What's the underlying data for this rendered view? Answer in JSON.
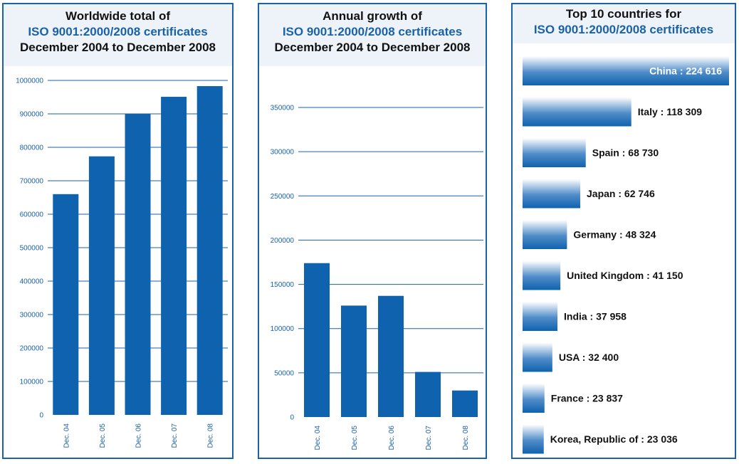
{
  "panels": [
    {
      "title_line1": "Worldwide total of",
      "title_line2": "ISO 9001:2000/2008 certificates",
      "title_line3": "December 2004 to December 2008"
    },
    {
      "title_line1": "Annual growth of",
      "title_line2": "ISO 9001:2000/2008 certificates",
      "title_line3": "December 2004 to December 2008"
    },
    {
      "title_line1": "Top 10 countries for",
      "title_line2": "ISO 9001:2000/2008 certificates"
    }
  ],
  "colors": {
    "accent": "#1a62a8",
    "bar": "#0f62ae"
  },
  "chart_data": [
    {
      "type": "bar",
      "categories": [
        "Dec. 04",
        "Dec. 05",
        "Dec. 06",
        "Dec. 07",
        "Dec. 08"
      ],
      "values": [
        660000,
        773000,
        900000,
        951000,
        983000
      ],
      "ylim": [
        0,
        1000000
      ],
      "yticks": [
        "0",
        "100000",
        "200000",
        "300000",
        "400000",
        "500000",
        "600000",
        "700000",
        "800000",
        "900000",
        "1000000"
      ],
      "grid": true
    },
    {
      "type": "bar",
      "categories": [
        "Dec. 04",
        "Dec. 05",
        "Dec. 06",
        "Dec. 07",
        "Dec. 08"
      ],
      "values": [
        174000,
        126000,
        137000,
        51000,
        30000
      ],
      "ylim": [
        0,
        350000
      ],
      "yticks": [
        "0",
        "50000",
        "100000",
        "150000",
        "200000",
        "250000",
        "300000",
        "350000"
      ],
      "grid": true
    },
    {
      "type": "bar",
      "orientation": "horizontal",
      "categories": [
        "China",
        "Italy",
        "Spain",
        "Japan",
        "Germany",
        "United Kingdom",
        "India",
        "USA",
        "France",
        "Korea, Republic of"
      ],
      "values": [
        224616,
        118309,
        68730,
        62746,
        48324,
        41150,
        37958,
        32400,
        23837,
        23036
      ],
      "labels": [
        "China : 224 616",
        "Italy : 118 309",
        "Spain : 68 730",
        "Japan : 62 746",
        "Germany : 48 324",
        "United Kingdom : 41 150",
        "India : 37 958",
        "USA : 32 400",
        "France : 23 837",
        "Korea, Republic of : 23 036"
      ]
    }
  ]
}
